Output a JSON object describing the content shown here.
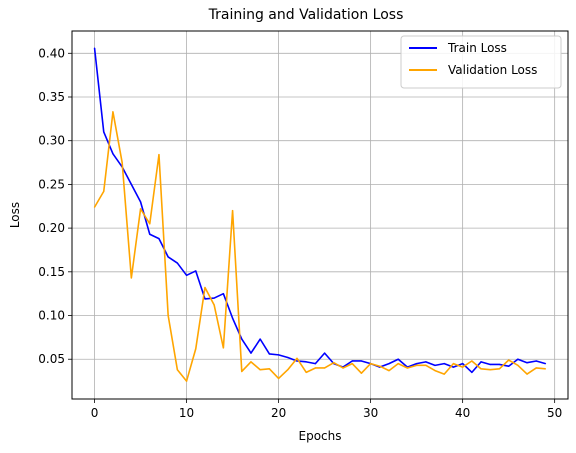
{
  "chart_data": {
    "type": "line",
    "title": "Training and Validation Loss",
    "xlabel": "Epochs",
    "ylabel": "Loss",
    "xlim": [
      -2.45,
      51.45
    ],
    "ylim": [
      0.0045,
      0.4255
    ],
    "xticks": [
      0,
      10,
      20,
      30,
      40,
      50
    ],
    "yticks": [
      0.05,
      0.1,
      0.15,
      0.2,
      0.25,
      0.3,
      0.35,
      0.4
    ],
    "ytick_labels": [
      "0.05",
      "0.10",
      "0.15",
      "0.20",
      "0.25",
      "0.30",
      "0.35",
      "0.40"
    ],
    "grid": true,
    "legend_position": "upper right",
    "x": [
      0,
      1,
      2,
      3,
      4,
      5,
      6,
      7,
      8,
      9,
      10,
      11,
      12,
      13,
      14,
      15,
      16,
      17,
      18,
      19,
      20,
      21,
      22,
      23,
      24,
      25,
      26,
      27,
      28,
      29,
      30,
      31,
      32,
      33,
      34,
      35,
      36,
      37,
      38,
      39,
      40,
      41,
      42,
      43,
      44,
      45,
      46,
      47,
      48,
      49
    ],
    "series": [
      {
        "name": "Train Loss",
        "color": "#0000ff",
        "values": [
          0.406,
          0.31,
          0.285,
          0.27,
          0.25,
          0.23,
          0.193,
          0.188,
          0.167,
          0.16,
          0.146,
          0.151,
          0.119,
          0.12,
          0.125,
          0.097,
          0.073,
          0.057,
          0.073,
          0.056,
          0.055,
          0.052,
          0.048,
          0.047,
          0.045,
          0.057,
          0.045,
          0.041,
          0.048,
          0.048,
          0.045,
          0.041,
          0.045,
          0.05,
          0.041,
          0.045,
          0.047,
          0.043,
          0.045,
          0.041,
          0.045,
          0.035,
          0.047,
          0.044,
          0.044,
          0.042,
          0.05,
          0.046,
          0.048,
          0.045
        ]
      },
      {
        "name": "Validation Loss",
        "color": "#ffa500",
        "values": [
          0.224,
          0.242,
          0.333,
          0.275,
          0.143,
          0.222,
          0.205,
          0.284,
          0.1,
          0.038,
          0.025,
          0.062,
          0.132,
          0.112,
          0.063,
          0.22,
          0.036,
          0.047,
          0.038,
          0.039,
          0.028,
          0.038,
          0.051,
          0.035,
          0.04,
          0.04,
          0.046,
          0.04,
          0.045,
          0.034,
          0.045,
          0.042,
          0.037,
          0.045,
          0.04,
          0.043,
          0.043,
          0.037,
          0.033,
          0.045,
          0.041,
          0.048,
          0.039,
          0.038,
          0.039,
          0.049,
          0.043,
          0.033,
          0.04,
          0.039
        ]
      }
    ]
  }
}
